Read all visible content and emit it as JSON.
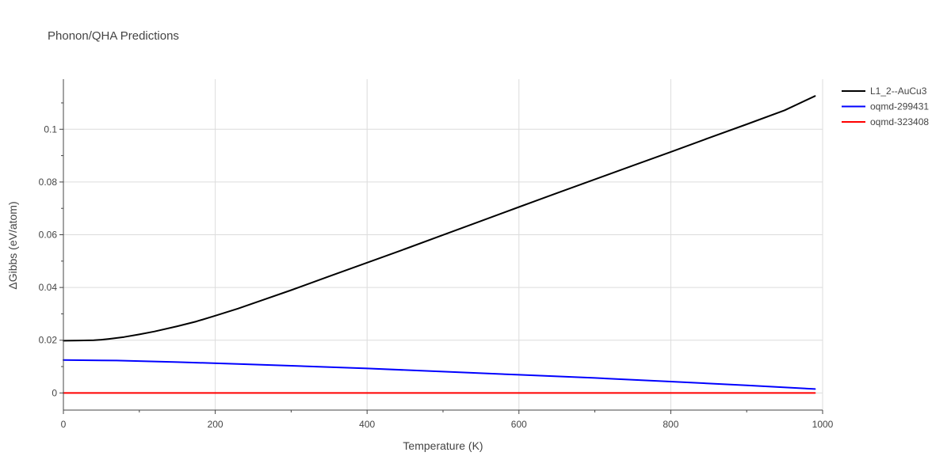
{
  "chart_data": {
    "type": "line",
    "title": "Phonon/QHA Predictions",
    "xlabel": "Temperature (K)",
    "ylabel": "ΔGibbs (eV/atom)",
    "xlim": [
      0,
      1000
    ],
    "ylim": [
      -0.0065,
      0.119
    ],
    "xticks": [
      0,
      200,
      400,
      600,
      800,
      1000
    ],
    "xtick_labels": [
      "0",
      "200",
      "400",
      "600",
      "800",
      "1000"
    ],
    "yticks": [
      0,
      0.02,
      0.04,
      0.06,
      0.08,
      0.1
    ],
    "ytick_labels": [
      "0",
      "0.02",
      "0.04",
      "0.06",
      "0.08",
      "0.1"
    ],
    "grid": true,
    "legend_position": "top-right-outside",
    "series": [
      {
        "name": "L1_2--AuCu3",
        "color": "#000000",
        "x": [
          0,
          20,
          40,
          50,
          60,
          80,
          100,
          120,
          150,
          175,
          200,
          230,
          260,
          300,
          350,
          400,
          450,
          500,
          550,
          600,
          650,
          700,
          750,
          800,
          850,
          900,
          950,
          990
        ],
        "y": [
          0.0198,
          0.0199,
          0.02,
          0.0202,
          0.0205,
          0.0212,
          0.0222,
          0.0233,
          0.0253,
          0.0271,
          0.0293,
          0.032,
          0.035,
          0.039,
          0.0442,
          0.0494,
          0.0546,
          0.0599,
          0.0652,
          0.0705,
          0.0758,
          0.081,
          0.0862,
          0.0914,
          0.0967,
          0.1019,
          0.1072,
          0.1126
        ]
      },
      {
        "name": "oqmd-299431",
        "color": "#0000ff",
        "x": [
          0,
          70,
          150,
          230,
          300,
          400,
          500,
          600,
          700,
          800,
          900,
          990
        ],
        "y": [
          0.0125,
          0.0123,
          0.0117,
          0.011,
          0.0103,
          0.0093,
          0.0081,
          0.0069,
          0.0057,
          0.0043,
          0.0029,
          0.0015
        ]
      },
      {
        "name": "oqmd-323408",
        "color": "#ff0000",
        "x": [
          0,
          990
        ],
        "y": [
          0,
          0
        ]
      }
    ]
  }
}
